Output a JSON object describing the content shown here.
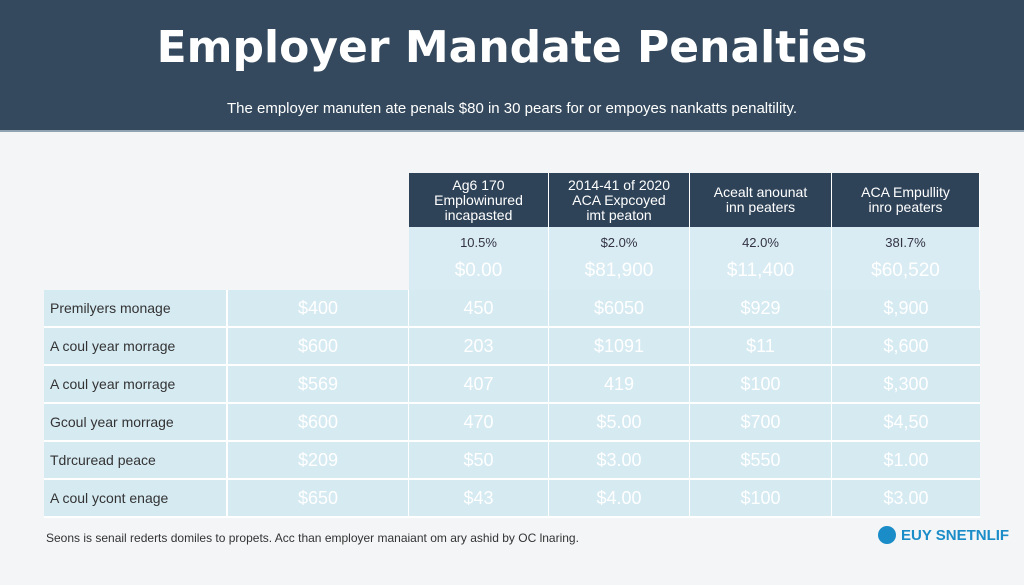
{
  "header": {
    "title": "Employer Mandate Penalties",
    "subtitle": "The employer manuten ate penals $80 in 30 pears for or empoyes nankatts penaltility."
  },
  "columns": [
    {
      "lines": [
        "Ag6 170",
        "Emplowinured",
        "incapasted"
      ],
      "percent": "10.5%",
      "amount": "$0.00"
    },
    {
      "lines": [
        "2014-41 of 2020",
        "ACA Expcoyed",
        "imt peaton"
      ],
      "percent": "$2.0%",
      "amount": "$81,900"
    },
    {
      "lines": [
        "Acealt anounat",
        "inn peaters"
      ],
      "percent": "42.0%",
      "amount": "$11,400"
    },
    {
      "lines": [
        "ACA Empullity",
        "inro peaters"
      ],
      "percent": "38I.7%",
      "amount": "$60,520"
    }
  ],
  "rows": [
    {
      "label": "Premilyers monage",
      "values": [
        "$400",
        "450",
        "$6050",
        "$929",
        "$,900"
      ]
    },
    {
      "label": "A coul year morrage",
      "values": [
        "$600",
        "203",
        "$1091",
        "$11",
        "$,600"
      ]
    },
    {
      "label": "A coul year morrage",
      "values": [
        "$569",
        "407",
        "419",
        "$100",
        "$,300"
      ]
    },
    {
      "label": "Gcoul year morrage",
      "values": [
        "$600",
        "470",
        "$5.00",
        "$700",
        "$4,50"
      ]
    },
    {
      "label": "Tdrcuread peace",
      "values": [
        "$209",
        "$50",
        "$3.00",
        "$550",
        "$1.00"
      ]
    },
    {
      "label": "A coul ycont enage",
      "values": [
        "$650",
        "$43",
        "$4.00",
        "$100",
        "$3.00"
      ]
    }
  ],
  "footer": {
    "note": "Seons is senail rederts domiles to propets. Acc than employer manaiant om ary ashid by  OC lnaring.",
    "logo": "EUY SNETNLIF"
  },
  "colors": {
    "header": "#34495d",
    "table_header": "#2f4358",
    "cell": "#d6eaf2",
    "logo": "#1a8cc8"
  }
}
